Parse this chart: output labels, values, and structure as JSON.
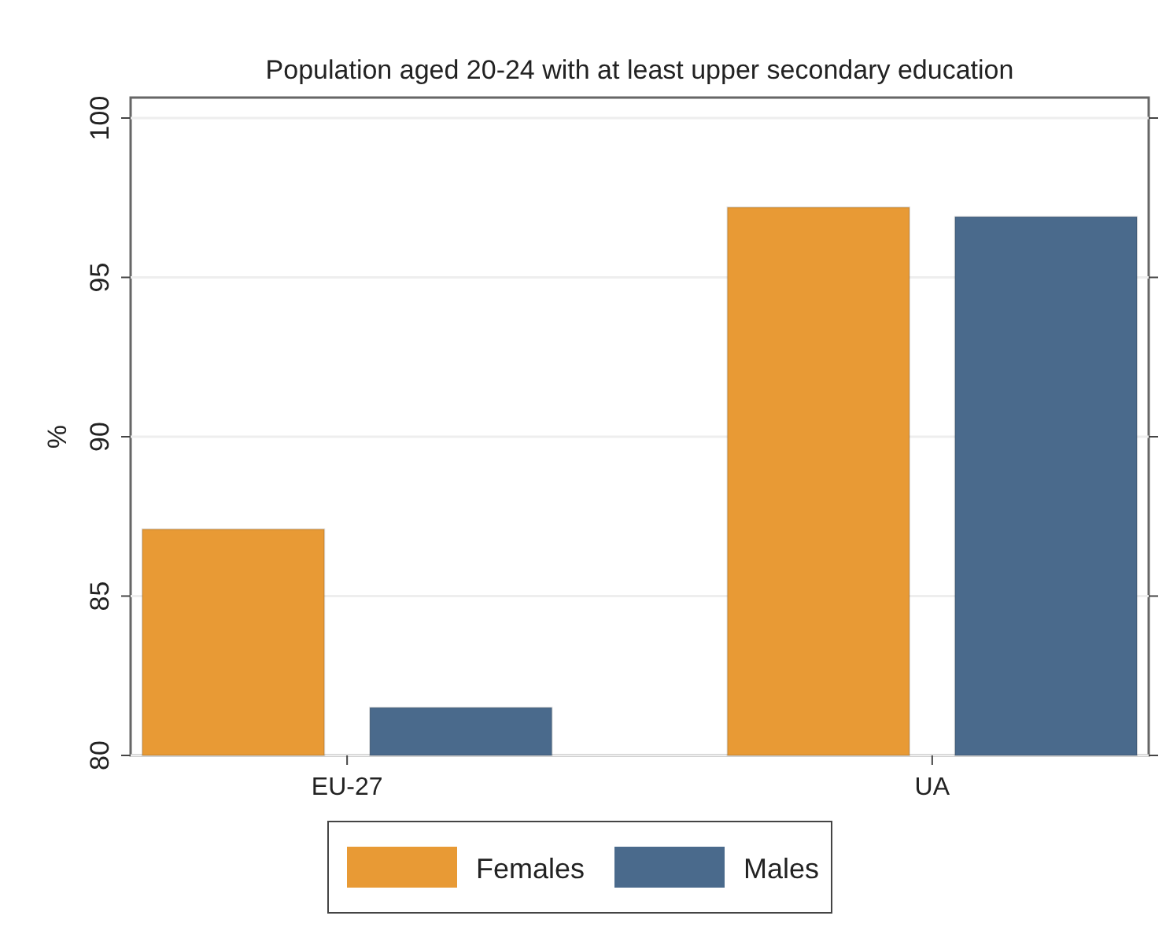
{
  "chart_data": {
    "type": "bar",
    "title": "Population aged 20-24 with at least upper secondary education",
    "ylabel": "%",
    "categories": [
      "EU-27",
      "UA"
    ],
    "series": [
      {
        "name": "Females",
        "color": "#e89a35",
        "values": [
          87.1,
          97.2
        ]
      },
      {
        "name": "Males",
        "color": "#4a6a8c",
        "values": [
          81.5,
          96.9
        ]
      }
    ],
    "ylim": [
      80,
      100
    ],
    "yticks": [
      80,
      85,
      90,
      95,
      100
    ],
    "grid": "y",
    "legend": "bottom"
  }
}
